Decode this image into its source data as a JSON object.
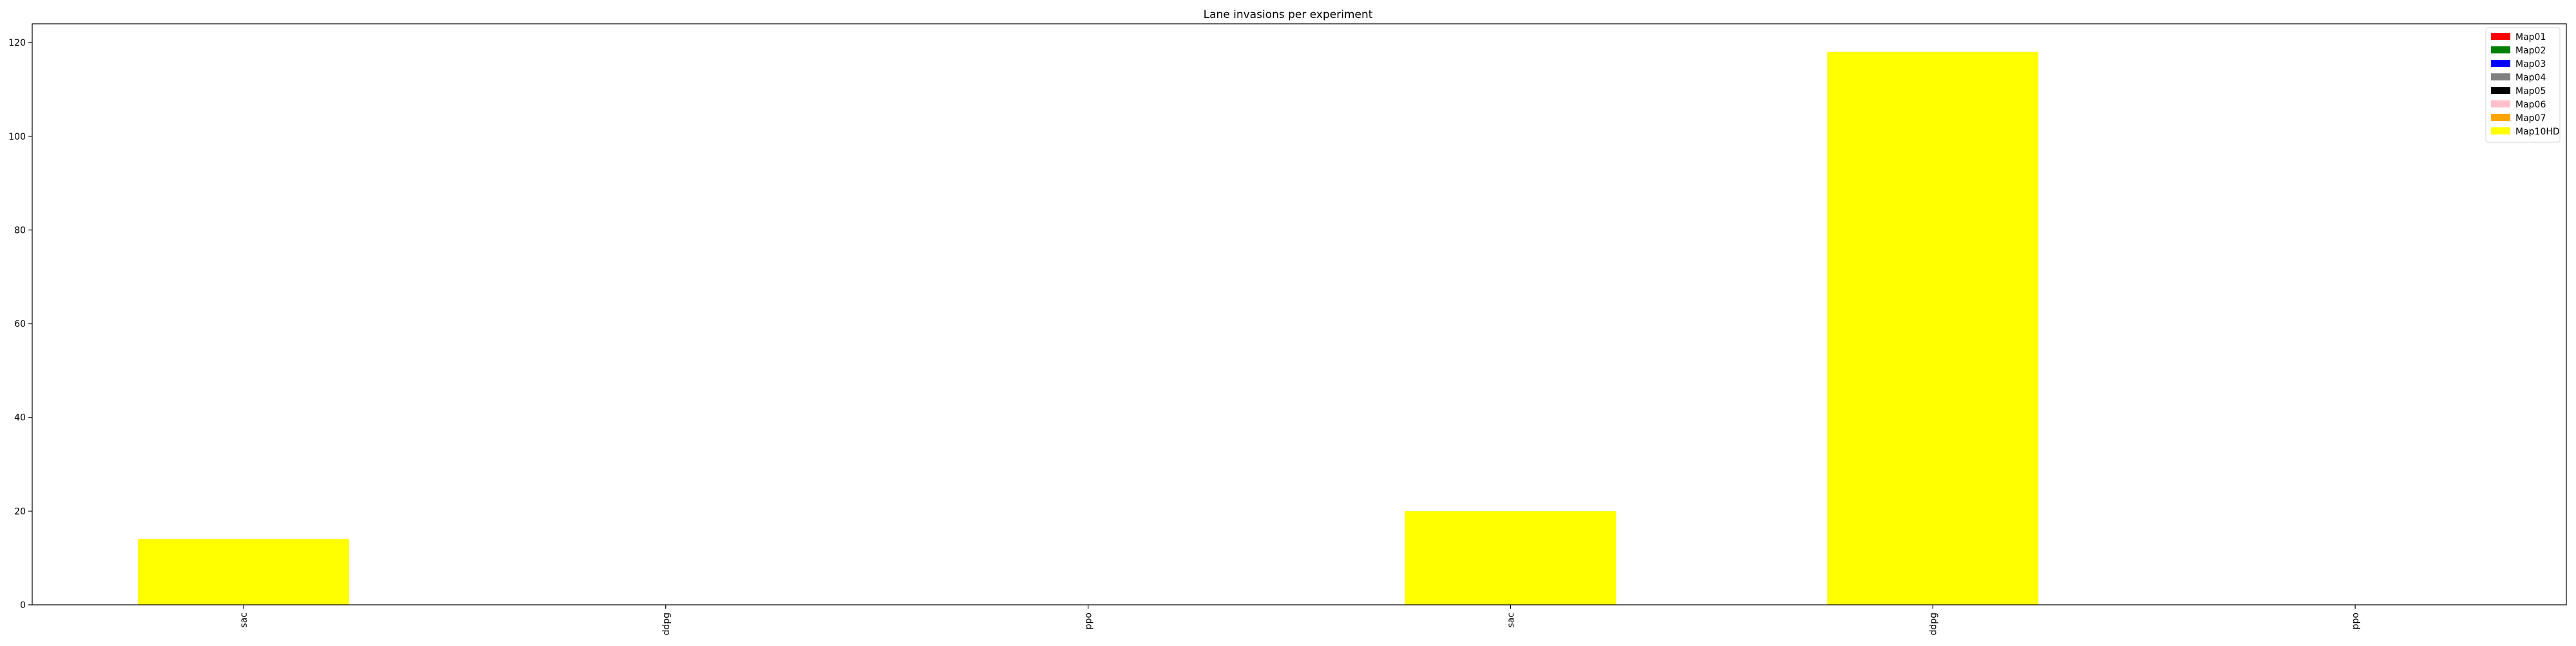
{
  "chart_data": {
    "type": "bar",
    "title": "Lane invasions per experiment",
    "xlabel": "",
    "ylabel": "",
    "categories": [
      "sac",
      "ddpg",
      "ppo",
      "sac",
      "ddpg",
      "ppo"
    ],
    "ylim": [
      0,
      124
    ],
    "y_ticks": [
      0,
      20,
      40,
      60,
      80,
      100,
      120
    ],
    "grid": false,
    "legend_position": "top-right",
    "series": [
      {
        "name": "Map01",
        "color": "#ff0000",
        "values": [
          0,
          0,
          0,
          0,
          0,
          0
        ]
      },
      {
        "name": "Map02",
        "color": "#008000",
        "values": [
          0,
          0,
          0,
          0,
          0,
          0
        ]
      },
      {
        "name": "Map03",
        "color": "#0000ff",
        "values": [
          0,
          0,
          0,
          0,
          0,
          0
        ]
      },
      {
        "name": "Map04",
        "color": "#808080",
        "values": [
          0,
          0,
          0,
          0,
          0,
          0
        ]
      },
      {
        "name": "Map05",
        "color": "#000000",
        "values": [
          0,
          0,
          0,
          0,
          0,
          0
        ]
      },
      {
        "name": "Map06",
        "color": "#ffc0cb",
        "values": [
          0,
          0,
          0,
          0,
          0,
          0
        ]
      },
      {
        "name": "Map07",
        "color": "#ffa500",
        "values": [
          0,
          0,
          0,
          0,
          0,
          0
        ]
      },
      {
        "name": "Map10HD",
        "color": "#ffff00",
        "values": [
          14,
          0,
          0,
          20,
          118,
          0
        ]
      }
    ]
  }
}
